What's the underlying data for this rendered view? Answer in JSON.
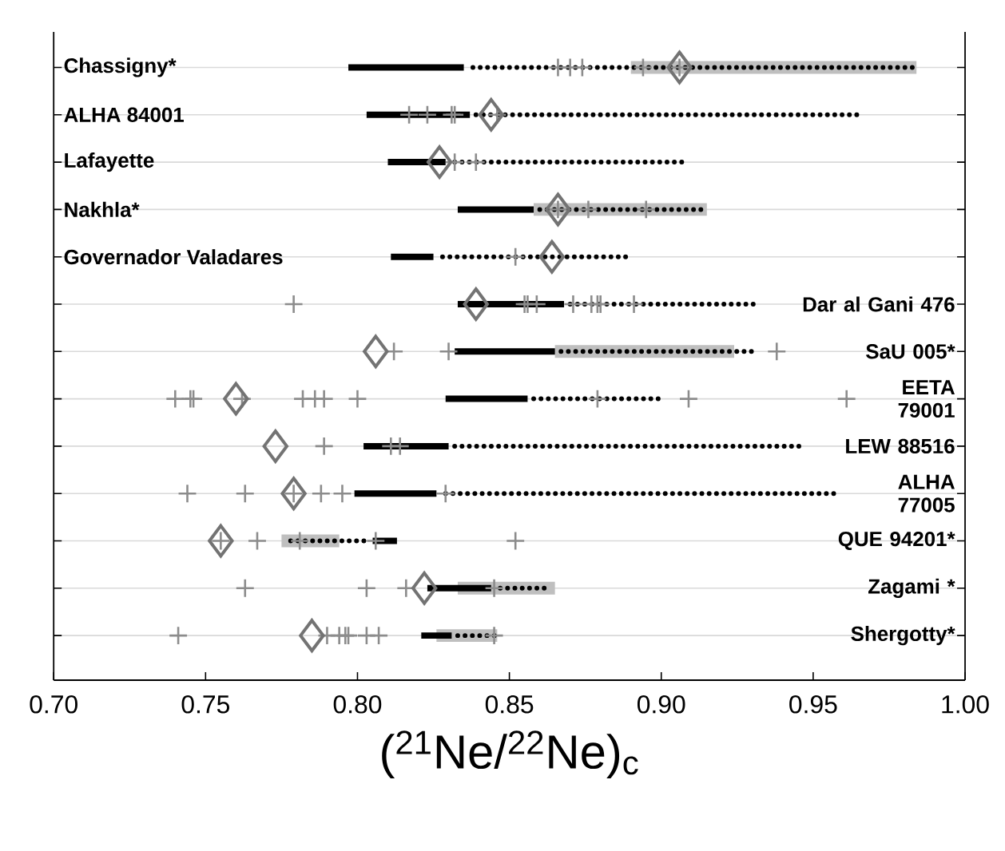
{
  "chart_data": {
    "type": "bar",
    "orientation": "horizontal",
    "xlabel": "($^{21}$Ne/$^{22}$Ne)$_{c}$",
    "categories": [
      "Chassigny*",
      "ALHA 84001",
      "Lafayette",
      "Nakhla*",
      "Governador Valadares",
      "Dar al Gani 476",
      "SaU 005*",
      "EETA 79001",
      "LEW 88516",
      "ALHA 77005",
      "QUE 94201*",
      "Zagami *",
      "Shergotty*"
    ],
    "xlim": [
      0.7,
      1.0
    ],
    "xticks": [
      {
        "value": 0.7,
        "label": "0.70"
      },
      {
        "value": 0.75,
        "label": "0.75"
      },
      {
        "value": 0.8,
        "label": "0.80"
      },
      {
        "value": 0.85,
        "label": "0.85"
      },
      {
        "value": 0.9,
        "label": "0.90"
      },
      {
        "value": 0.95,
        "label": "0.95"
      },
      {
        "value": 1.0,
        "label": "1.00"
      }
    ],
    "grid": "y",
    "tick_labels": "x",
    "series": [
      {
        "color": "#bfbfbf",
        "line_style": "solid",
        "base": [
          0.89,
          null,
          null,
          0.858,
          null,
          null,
          0.865,
          null,
          null,
          null,
          0.775,
          0.833,
          0.826
        ],
        "values": [
          0.094,
          null,
          null,
          0.057,
          null,
          null,
          0.059,
          null,
          null,
          null,
          0.019,
          0.032,
          0.02
        ]
      },
      {
        "color": "#000000",
        "line_style": "solid",
        "base": [
          0.797,
          0.803,
          0.81,
          0.833,
          0.811,
          0.833,
          0.832,
          0.829,
          0.802,
          0.799,
          0.805,
          0.823,
          0.821
        ],
        "values": [
          0.038,
          0.034,
          0.019,
          0.025,
          0.014,
          0.035,
          0.033,
          0.027,
          0.028,
          0.027,
          0.008,
          0.021,
          0.01
        ],
        "errors": [
          [
            0.838,
            0.984
          ],
          [
            0.839,
            0.965
          ],
          [
            0.832,
            0.908
          ],
          [
            0.86,
            0.915
          ],
          [
            0.828,
            0.89
          ],
          [
            0.87,
            0.931
          ],
          [
            0.867,
            0.931
          ],
          [
            0.858,
            0.9
          ],
          [
            0.832,
            0.946
          ],
          [
            0.829,
            0.958
          ],
          [
            0.778,
            0.803
          ],
          [
            0.847,
            0.863
          ],
          [
            0.833,
            0.846
          ]
        ]
      },
      {
        "type": "scatter",
        "color": "#8c8c8c",
        "marker": "cross",
        "x": [
          "Chassigny*",
          "Chassigny*",
          "Chassigny*",
          "Chassigny*",
          "Chassigny*",
          "ALHA 84001",
          "ALHA 84001",
          "ALHA 84001",
          "ALHA 84001",
          "ALHA 84001",
          "Lafayette",
          "Lafayette",
          "Nakhla*",
          "Nakhla*",
          "Nakhla*",
          "Governador Valadares",
          "Dar al Gani 476",
          "Dar al Gani 476",
          "Dar al Gani 476",
          "Dar al Gani 476",
          "Dar al Gani 476",
          "Dar al Gani 476",
          "Dar al Gani 476",
          "Dar al Gani 476",
          "Dar al Gani 476",
          "SaU 005*",
          "SaU 005*",
          "SaU 005*",
          "EETA 79001",
          "EETA 79001",
          "EETA 79001",
          "EETA 79001",
          "EETA 79001",
          "EETA 79001",
          "EETA 79001",
          "EETA 79001",
          "EETA 79001",
          "EETA 79001",
          "EETA 79001",
          "LEW 88516",
          "LEW 88516",
          "LEW 88516",
          "ALHA 77005",
          "ALHA 77005",
          "ALHA 77005",
          "ALHA 77005",
          "ALHA 77005",
          "ALHA 77005",
          "QUE 94201*",
          "QUE 94201*",
          "QUE 94201*",
          "QUE 94201*",
          "QUE 94201*",
          "Zagami *",
          "Zagami *",
          "Zagami *",
          "Zagami *",
          "Shergotty*",
          "Shergotty*",
          "Shergotty*",
          "Shergotty*",
          "Shergotty*",
          "Shergotty*",
          "Shergotty*",
          "Shergotty*"
        ],
        "values": [
          0.866,
          0.87,
          0.874,
          0.894,
          0.906,
          0.817,
          0.823,
          0.831,
          0.832,
          0.846,
          0.832,
          0.839,
          0.866,
          0.876,
          0.895,
          0.852,
          0.779,
          0.855,
          0.856,
          0.859,
          0.871,
          0.877,
          0.879,
          0.88,
          0.891,
          0.812,
          0.83,
          0.938,
          0.74,
          0.745,
          0.746,
          0.762,
          0.782,
          0.786,
          0.789,
          0.8,
          0.879,
          0.909,
          0.961,
          0.789,
          0.811,
          0.814,
          0.744,
          0.763,
          0.779,
          0.788,
          0.795,
          0.829,
          0.755,
          0.767,
          0.781,
          0.806,
          0.852,
          0.763,
          0.803,
          0.816,
          0.845,
          0.741,
          0.79,
          0.794,
          0.796,
          0.797,
          0.803,
          0.807,
          0.845
        ]
      },
      {
        "type": "scatter",
        "color": "#737373",
        "marker": "diamond",
        "x": [
          "Chassigny*",
          "ALHA 84001",
          "Lafayette",
          "Nakhla*",
          "Governador Valadares",
          "Dar al Gani 476",
          "SaU 005*",
          "EETA 79001",
          "LEW 88516",
          "ALHA 77005",
          "QUE 94201*",
          "Zagami *",
          "Shergotty*"
        ],
        "values": [
          0.906,
          0.844,
          0.827,
          0.866,
          0.864,
          0.839,
          0.806,
          0.76,
          0.773,
          0.779,
          0.755,
          0.822,
          0.785
        ]
      }
    ]
  }
}
